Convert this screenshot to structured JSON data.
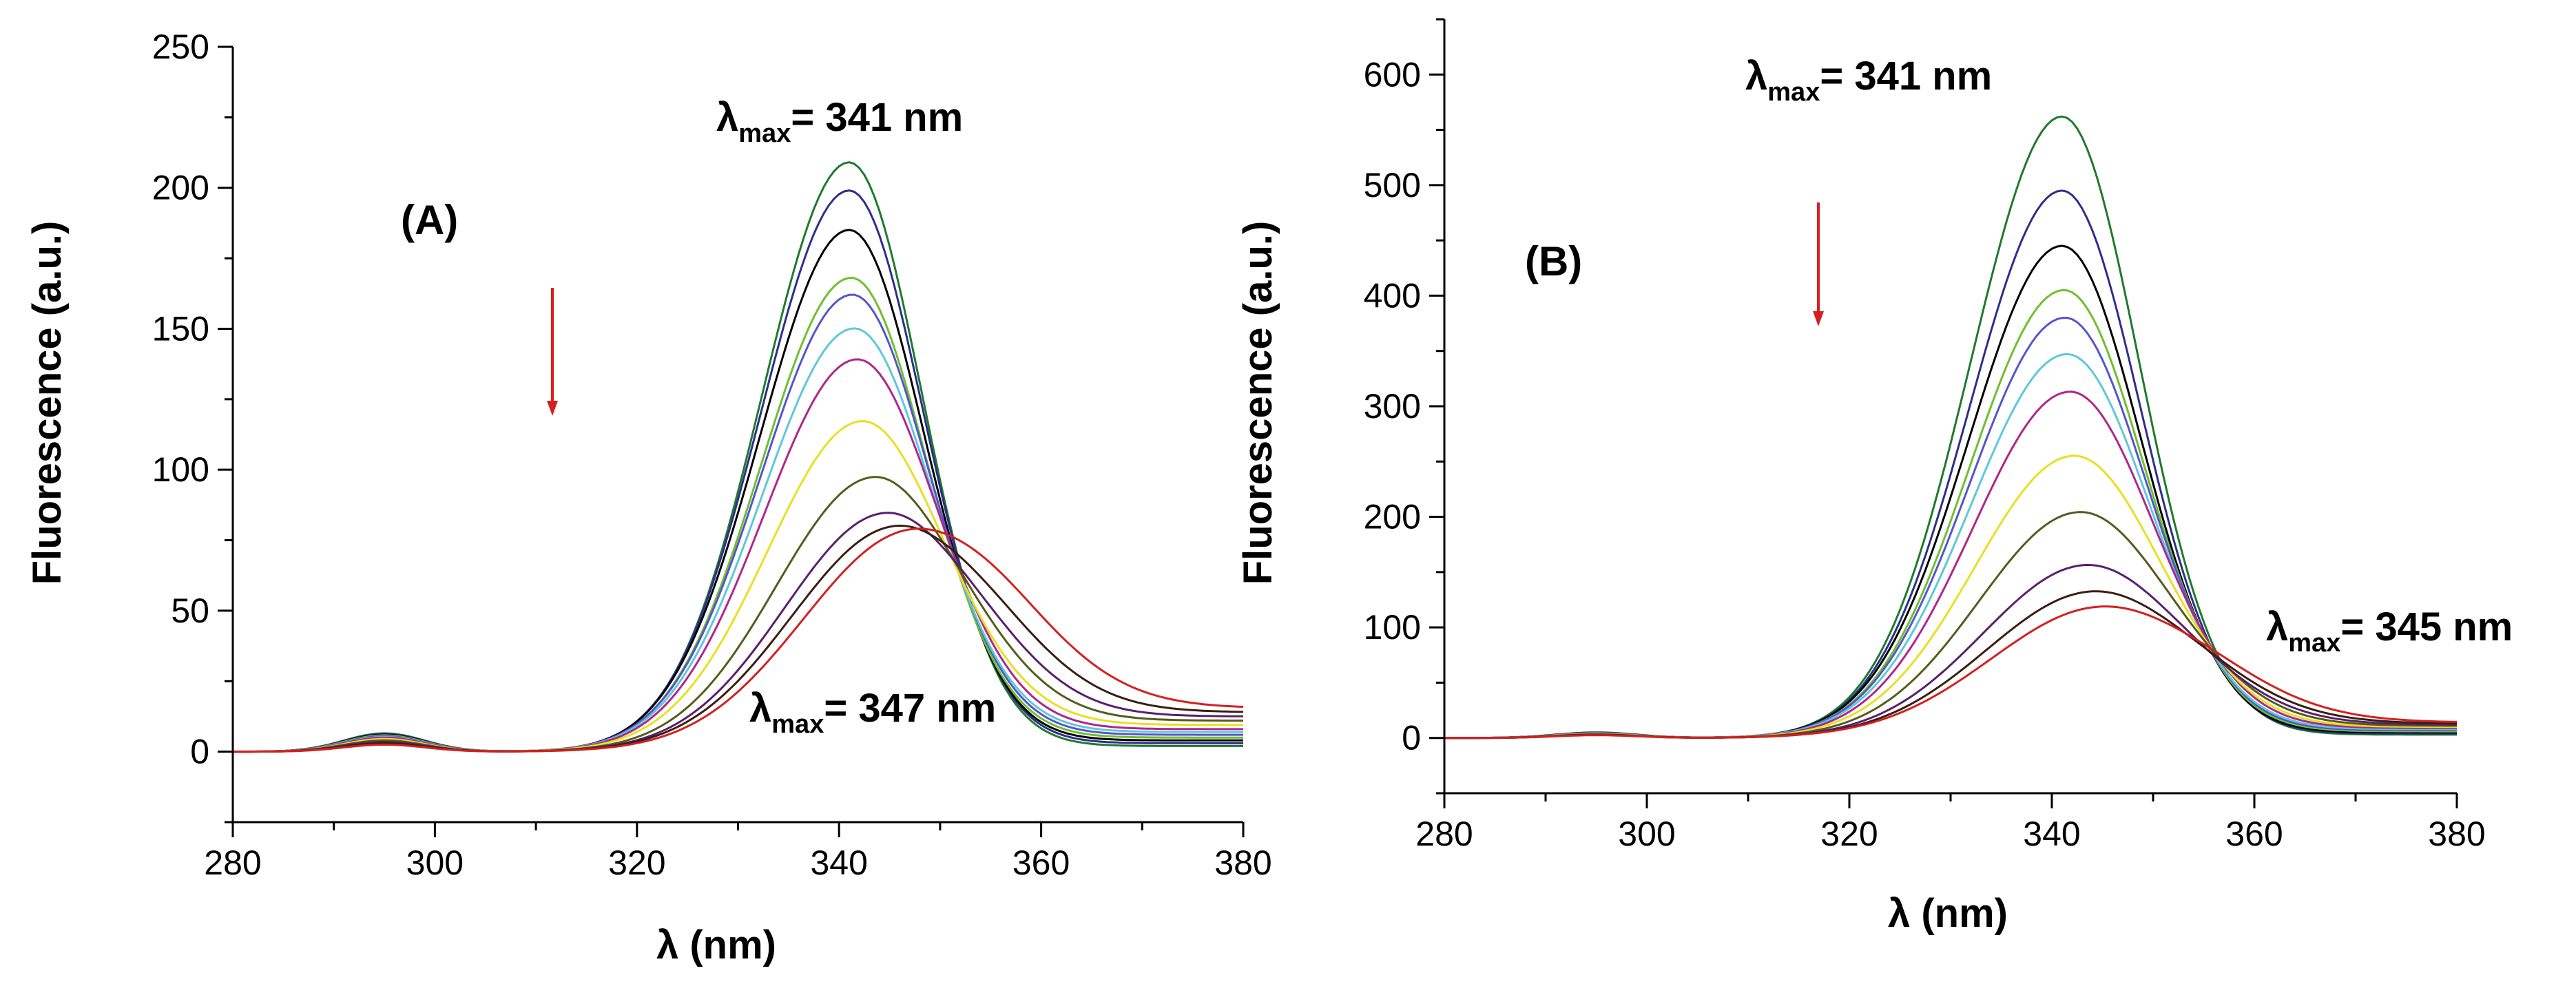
{
  "chart_data": [
    {
      "type": "line",
      "panel_label": "(A)",
      "xlabel": "λ (nm)",
      "ylabel": "Fluorescence (a.u.)",
      "xlim": [
        280,
        380
      ],
      "ylim": [
        -25,
        250
      ],
      "xticks": [
        280,
        300,
        320,
        340,
        360,
        380
      ],
      "yticks": [
        0,
        50,
        100,
        150,
        200,
        250
      ],
      "annotations": [
        {
          "symbol": "λ",
          "sub": "max",
          "text": "= 341 nm"
        },
        {
          "symbol": "λ",
          "sub": "max",
          "text": "= 347 nm"
        }
      ],
      "arrow": {
        "direction": "down",
        "color": "#d42020"
      },
      "series": [
        {
          "name": "s1",
          "color": "#1f7a2e",
          "peak": 209,
          "center": 341.0,
          "left_sigma": 8.6,
          "right_sigma": 7.2,
          "shoulder": 6.5,
          "tail": 2.0
        },
        {
          "name": "s2",
          "color": "#2e2f8a",
          "peak": 199,
          "center": 341.0,
          "left_sigma": 8.7,
          "right_sigma": 7.3,
          "shoulder": 6.3,
          "tail": 3.0
        },
        {
          "name": "s3",
          "color": "#000000",
          "peak": 185,
          "center": 341.0,
          "left_sigma": 8.8,
          "right_sigma": 7.4,
          "shoulder": 6.0,
          "tail": 4.0
        },
        {
          "name": "s4",
          "color": "#6fbf2e",
          "peak": 168,
          "center": 341.2,
          "left_sigma": 8.9,
          "right_sigma": 7.5,
          "shoulder": 5.8,
          "tail": 5.0
        },
        {
          "name": "s5",
          "color": "#5555cc",
          "peak": 162,
          "center": 341.3,
          "left_sigma": 9.0,
          "right_sigma": 7.6,
          "shoulder": 5.5,
          "tail": 6.0
        },
        {
          "name": "s6",
          "color": "#5ec8d8",
          "peak": 150,
          "center": 341.5,
          "left_sigma": 9.1,
          "right_sigma": 7.7,
          "shoulder": 5.2,
          "tail": 7.0
        },
        {
          "name": "s7",
          "color": "#b0268a",
          "peak": 139,
          "center": 341.8,
          "left_sigma": 9.2,
          "right_sigma": 7.9,
          "shoulder": 5.0,
          "tail": 8.0
        },
        {
          "name": "s8",
          "color": "#e8e020",
          "peak": 117,
          "center": 342.3,
          "left_sigma": 9.4,
          "right_sigma": 8.2,
          "shoulder": 4.5,
          "tail": 9.5
        },
        {
          "name": "s9",
          "color": "#555c1c",
          "peak": 97,
          "center": 343.5,
          "left_sigma": 9.7,
          "right_sigma": 8.6,
          "shoulder": 4.0,
          "tail": 11.0
        },
        {
          "name": "s10",
          "color": "#5a1f6e",
          "peak": 84,
          "center": 344.6,
          "left_sigma": 10.0,
          "right_sigma": 9.0,
          "shoulder": 3.5,
          "tail": 12.5
        },
        {
          "name": "s11",
          "color": "#3a1e12",
          "peak": 79,
          "center": 345.6,
          "left_sigma": 10.3,
          "right_sigma": 9.6,
          "shoulder": 3.0,
          "tail": 14.0
        },
        {
          "name": "s12",
          "color": "#d42020",
          "peak": 77,
          "center": 347.0,
          "left_sigma": 10.6,
          "right_sigma": 10.2,
          "shoulder": 2.5,
          "tail": 15.5
        }
      ]
    },
    {
      "type": "line",
      "panel_label": "(B)",
      "xlabel": "λ (nm)",
      "ylabel": "Fluorescence (a.u.)",
      "xlim": [
        280,
        380
      ],
      "ylim": [
        -50,
        650
      ],
      "xticks": [
        280,
        300,
        320,
        340,
        360,
        380
      ],
      "yticks": [
        0,
        100,
        200,
        300,
        400,
        500,
        600
      ],
      "annotations": [
        {
          "symbol": "λ",
          "sub": "max",
          "text": "= 341 nm"
        },
        {
          "symbol": "λ",
          "sub": "max",
          "text": "= 345 nm"
        }
      ],
      "arrow": {
        "direction": "down",
        "color": "#d42020"
      },
      "series": [
        {
          "name": "s1",
          "color": "#1f7a2e",
          "peak": 562,
          "center": 341.0,
          "left_sigma": 9.0,
          "right_sigma": 7.6,
          "shoulder": 5.0,
          "tail": 3.0
        },
        {
          "name": "s2",
          "color": "#2e2f8a",
          "peak": 495,
          "center": 341.0,
          "left_sigma": 9.1,
          "right_sigma": 7.7,
          "shoulder": 4.8,
          "tail": 4.0
        },
        {
          "name": "s3",
          "color": "#000000",
          "peak": 445,
          "center": 341.0,
          "left_sigma": 9.2,
          "right_sigma": 7.8,
          "shoulder": 4.6,
          "tail": 5.0
        },
        {
          "name": "s4",
          "color": "#6fbf2e",
          "peak": 405,
          "center": 341.2,
          "left_sigma": 9.3,
          "right_sigma": 7.9,
          "shoulder": 4.4,
          "tail": 6.0
        },
        {
          "name": "s5",
          "color": "#5555cc",
          "peak": 380,
          "center": 341.3,
          "left_sigma": 9.4,
          "right_sigma": 8.0,
          "shoulder": 4.2,
          "tail": 7.0
        },
        {
          "name": "s6",
          "color": "#5ec8d8",
          "peak": 347,
          "center": 341.5,
          "left_sigma": 9.5,
          "right_sigma": 8.1,
          "shoulder": 4.0,
          "tail": 8.0
        },
        {
          "name": "s7",
          "color": "#b0268a",
          "peak": 313,
          "center": 341.8,
          "left_sigma": 9.6,
          "right_sigma": 8.3,
          "shoulder": 3.8,
          "tail": 9.0
        },
        {
          "name": "s8",
          "color": "#e8e020",
          "peak": 255,
          "center": 342.2,
          "left_sigma": 9.8,
          "right_sigma": 8.6,
          "shoulder": 3.5,
          "tail": 10.0
        },
        {
          "name": "s9",
          "color": "#555c1c",
          "peak": 204,
          "center": 342.8,
          "left_sigma": 10.0,
          "right_sigma": 9.0,
          "shoulder": 3.2,
          "tail": 11.0
        },
        {
          "name": "s10",
          "color": "#5a1f6e",
          "peak": 156,
          "center": 343.5,
          "left_sigma": 10.3,
          "right_sigma": 9.5,
          "shoulder": 3.0,
          "tail": 12.0
        },
        {
          "name": "s11",
          "color": "#3a1e12",
          "peak": 132,
          "center": 344.2,
          "left_sigma": 10.6,
          "right_sigma": 10.0,
          "shoulder": 2.8,
          "tail": 13.0
        },
        {
          "name": "s12",
          "color": "#d42020",
          "peak": 118,
          "center": 345.0,
          "left_sigma": 11.0,
          "right_sigma": 10.6,
          "shoulder": 2.5,
          "tail": 14.0
        }
      ]
    }
  ]
}
